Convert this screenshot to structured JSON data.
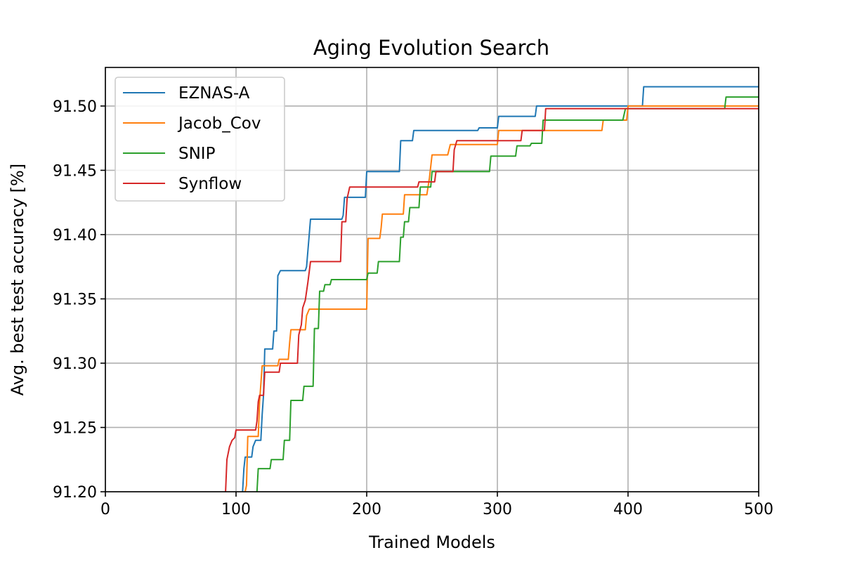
{
  "chart_data": {
    "type": "line",
    "title": "Aging Evolution Search",
    "xlabel": "Trained Models",
    "ylabel": "Avg. best test accuracy [%]",
    "xlim": [
      0,
      500
    ],
    "ylim": [
      91.2,
      91.53
    ],
    "xticks": [
      0,
      100,
      200,
      300,
      400,
      500
    ],
    "xtick_labels": [
      "0",
      "100",
      "200",
      "300",
      "400",
      "500"
    ],
    "yticks": [
      91.2,
      91.25,
      91.3,
      91.35,
      91.4,
      91.45,
      91.5
    ],
    "ytick_labels": [
      "91.20",
      "91.25",
      "91.30",
      "91.35",
      "91.40",
      "91.45",
      "91.50"
    ],
    "grid": true,
    "legend_position": "top-left",
    "series": [
      {
        "name": "EZNAS-A",
        "color": "#1f77b4",
        "points": [
          [
            105,
            91.2
          ],
          [
            106,
            91.218
          ],
          [
            107,
            91.227
          ],
          [
            112,
            91.227
          ],
          [
            113,
            91.235
          ],
          [
            115,
            91.24
          ],
          [
            119,
            91.24
          ],
          [
            120,
            91.26
          ],
          [
            121,
            91.275
          ],
          [
            122,
            91.311
          ],
          [
            128,
            91.311
          ],
          [
            129,
            91.325
          ],
          [
            131,
            91.325
          ],
          [
            132,
            91.368
          ],
          [
            134,
            91.372
          ],
          [
            153,
            91.372
          ],
          [
            154,
            91.375
          ],
          [
            156,
            91.4
          ],
          [
            157,
            91.412
          ],
          [
            181,
            91.412
          ],
          [
            182,
            91.415
          ],
          [
            183,
            91.429
          ],
          [
            199,
            91.429
          ],
          [
            200,
            91.449
          ],
          [
            225,
            91.449
          ],
          [
            226,
            91.473
          ],
          [
            235,
            91.473
          ],
          [
            236,
            91.481
          ],
          [
            285,
            91.481
          ],
          [
            286,
            91.483
          ],
          [
            300,
            91.483
          ],
          [
            301,
            91.492
          ],
          [
            329,
            91.492
          ],
          [
            330,
            91.5
          ],
          [
            411,
            91.5
          ],
          [
            412,
            91.515
          ],
          [
            500,
            91.515
          ]
        ]
      },
      {
        "name": "Jacob_Cov",
        "color": "#ff7f0e",
        "points": [
          [
            107,
            91.2
          ],
          [
            108,
            91.205
          ],
          [
            109,
            91.243
          ],
          [
            117,
            91.243
          ],
          [
            118,
            91.27
          ],
          [
            120,
            91.298
          ],
          [
            132,
            91.298
          ],
          [
            133,
            91.303
          ],
          [
            140,
            91.303
          ],
          [
            141,
            91.316
          ],
          [
            142,
            91.326
          ],
          [
            153,
            91.326
          ],
          [
            154,
            91.337
          ],
          [
            156,
            91.342
          ],
          [
            200,
            91.342
          ],
          [
            201,
            91.397
          ],
          [
            210,
            91.397
          ],
          [
            211,
            91.405
          ],
          [
            212,
            91.416
          ],
          [
            228,
            91.416
          ],
          [
            229,
            91.431
          ],
          [
            246,
            91.431
          ],
          [
            248,
            91.444
          ],
          [
            250,
            91.462
          ],
          [
            262,
            91.462
          ],
          [
            264,
            91.47
          ],
          [
            300,
            91.47
          ],
          [
            301,
            91.481
          ],
          [
            380,
            91.481
          ],
          [
            381,
            91.489
          ],
          [
            399,
            91.489
          ],
          [
            400,
            91.5
          ],
          [
            500,
            91.5
          ]
        ]
      },
      {
        "name": "SNIP",
        "color": "#2ca02c",
        "points": [
          [
            116,
            91.2
          ],
          [
            117,
            91.218
          ],
          [
            126,
            91.218
          ],
          [
            127,
            91.225
          ],
          [
            136,
            91.225
          ],
          [
            137,
            91.24
          ],
          [
            141,
            91.24
          ],
          [
            142,
            91.271
          ],
          [
            151,
            91.271
          ],
          [
            152,
            91.282
          ],
          [
            159,
            91.282
          ],
          [
            160,
            91.327
          ],
          [
            163,
            91.327
          ],
          [
            164,
            91.356
          ],
          [
            167,
            91.356
          ],
          [
            168,
            91.361
          ],
          [
            172,
            91.361
          ],
          [
            173,
            91.365
          ],
          [
            200,
            91.365
          ],
          [
            201,
            91.37
          ],
          [
            208,
            91.37
          ],
          [
            209,
            91.379
          ],
          [
            225,
            91.379
          ],
          [
            226,
            91.398
          ],
          [
            228,
            91.398
          ],
          [
            229,
            91.41
          ],
          [
            232,
            91.41
          ],
          [
            233,
            91.421
          ],
          [
            240,
            91.421
          ],
          [
            241,
            91.437
          ],
          [
            249,
            91.437
          ],
          [
            250,
            91.449
          ],
          [
            294,
            91.449
          ],
          [
            295,
            91.461
          ],
          [
            314,
            91.461
          ],
          [
            315,
            91.469
          ],
          [
            325,
            91.469
          ],
          [
            326,
            91.471
          ],
          [
            334,
            91.471
          ],
          [
            335,
            91.489
          ],
          [
            396,
            91.489
          ],
          [
            398,
            91.498
          ],
          [
            474,
            91.498
          ],
          [
            475,
            91.507
          ],
          [
            500,
            91.507
          ]
        ]
      },
      {
        "name": "Synflow",
        "color": "#d62728",
        "points": [
          [
            92,
            91.2
          ],
          [
            93,
            91.225
          ],
          [
            95,
            91.235
          ],
          [
            97,
            91.24
          ],
          [
            99,
            91.242
          ],
          [
            100,
            91.248
          ],
          [
            115,
            91.248
          ],
          [
            116,
            91.255
          ],
          [
            117,
            91.27
          ],
          [
            118,
            91.275
          ],
          [
            121,
            91.275
          ],
          [
            122,
            91.293
          ],
          [
            133,
            91.293
          ],
          [
            134,
            91.3
          ],
          [
            147,
            91.3
          ],
          [
            148,
            91.322
          ],
          [
            150,
            91.33
          ],
          [
            151,
            91.343
          ],
          [
            153,
            91.349
          ],
          [
            155,
            91.363
          ],
          [
            157,
            91.379
          ],
          [
            180,
            91.379
          ],
          [
            181,
            91.41
          ],
          [
            184,
            91.41
          ],
          [
            185,
            91.428
          ],
          [
            187,
            91.437
          ],
          [
            239,
            91.437
          ],
          [
            240,
            91.441
          ],
          [
            252,
            91.441
          ],
          [
            253,
            91.449
          ],
          [
            266,
            91.449
          ],
          [
            267,
            91.466
          ],
          [
            269,
            91.473
          ],
          [
            318,
            91.473
          ],
          [
            319,
            91.481
          ],
          [
            336,
            91.481
          ],
          [
            337,
            91.498
          ],
          [
            500,
            91.498
          ]
        ]
      }
    ]
  }
}
